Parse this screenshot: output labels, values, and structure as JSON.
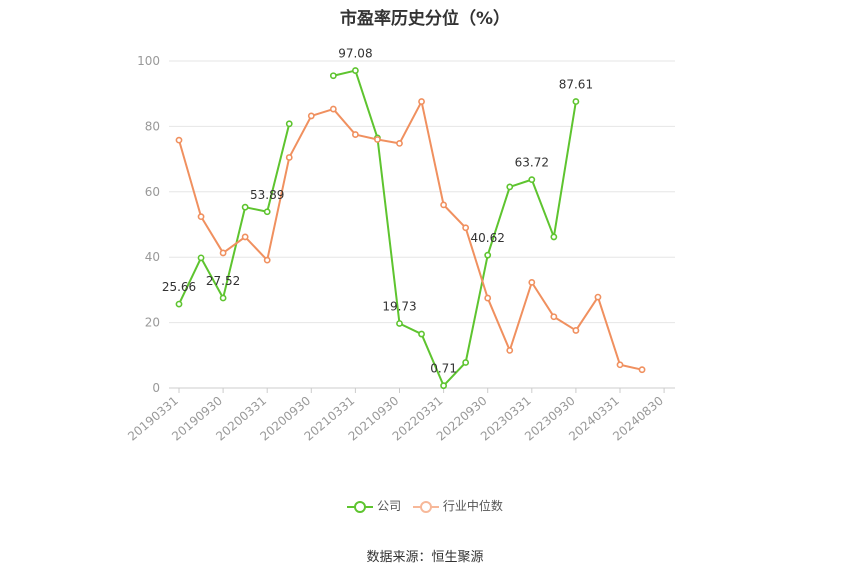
{
  "chart_data": {
    "type": "line",
    "title": "市盈率历史分位（%）",
    "ylim": [
      0,
      100
    ],
    "yticks": [
      0,
      20,
      40,
      60,
      80,
      100
    ],
    "x_labels": [
      "20190331",
      "20190930",
      "20200331",
      "20200930",
      "20210331",
      "20210930",
      "20220331",
      "20220930",
      "20230331",
      "20230930",
      "20240331",
      "20240830"
    ],
    "grid": true,
    "legend_position": "bottom-center",
    "series": [
      {
        "name": "公司",
        "color": "#5ec42f",
        "values": [
          25.66,
          39.8,
          27.52,
          55.3,
          53.89,
          80.8,
          null,
          95.5,
          97.08,
          76.5,
          19.73,
          16.5,
          0.71,
          7.8,
          40.62,
          61.5,
          63.72,
          46.2,
          87.61,
          null,
          null,
          null,
          null
        ],
        "data_labels": [
          {
            "index": 0,
            "text": "25.66"
          },
          {
            "index": 2,
            "text": "27.52"
          },
          {
            "index": 4,
            "text": "53.89"
          },
          {
            "index": 8,
            "text": "97.08"
          },
          {
            "index": 10,
            "text": "19.73"
          },
          {
            "index": 12,
            "text": "0.71"
          },
          {
            "index": 14,
            "text": "40.62"
          },
          {
            "index": 16,
            "text": "63.72"
          },
          {
            "index": 18,
            "text": "87.61"
          }
        ]
      },
      {
        "name": "行业中位数",
        "color": "#f0905f",
        "values": [
          75.8,
          52.4,
          41.3,
          46.2,
          39.1,
          70.5,
          83.2,
          85.3,
          77.5,
          76.0,
          74.8,
          87.6,
          56.0,
          49.0,
          27.5,
          11.5,
          32.3,
          21.8,
          17.6,
          27.8,
          7.1,
          5.6,
          null
        ]
      }
    ],
    "source": "数据来源：恒生聚源"
  }
}
